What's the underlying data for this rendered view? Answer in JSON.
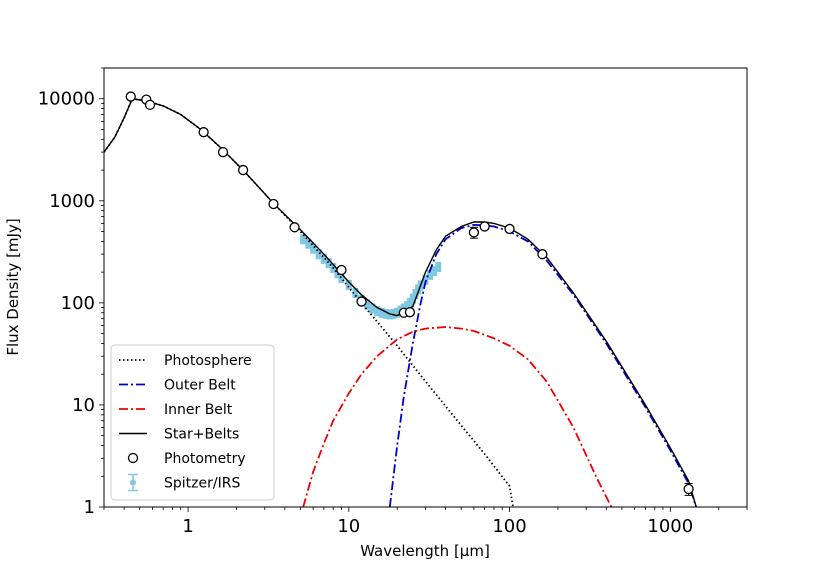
{
  "chart_data": {
    "type": "scatter",
    "title": "",
    "xlabel": "Wavelength [μm]",
    "ylabel": "Flux Density [mJy]",
    "xscale": "log",
    "yscale": "log",
    "xlim": [
      0.3,
      3000
    ],
    "ylim": [
      1,
      20000
    ],
    "x_ticks": [
      {
        "value": 1,
        "label": "1"
      },
      {
        "value": 10,
        "label": "10"
      },
      {
        "value": 100,
        "label": "100"
      },
      {
        "value": 1000,
        "label": "1000"
      }
    ],
    "y_ticks": [
      {
        "value": 1,
        "label": "1"
      },
      {
        "value": 10,
        "label": "10"
      },
      {
        "value": 100,
        "label": "100"
      },
      {
        "value": 1000,
        "label": "1000"
      },
      {
        "value": 10000,
        "label": "10000"
      }
    ],
    "legend": {
      "position": "lower-left",
      "entries": [
        {
          "key": "photosphere",
          "label": "Photosphere",
          "color": "#000000",
          "style": "dotted"
        },
        {
          "key": "outer",
          "label": "Outer Belt",
          "color": "#0000cc",
          "style": "dashdot"
        },
        {
          "key": "inner",
          "label": "Inner Belt",
          "color": "#ee0000",
          "style": "dashdot"
        },
        {
          "key": "total",
          "label": "Star+Belts",
          "color": "#000000",
          "style": "solid"
        },
        {
          "key": "phot",
          "label": "Photometry",
          "color": "#000000",
          "style": "marker"
        },
        {
          "key": "irs",
          "label": "Spitzer/IRS",
          "color": "#7ec8e3",
          "style": "errorbar"
        }
      ]
    },
    "series": [
      {
        "name": "Photosphere",
        "color": "#000000",
        "style": "dotted",
        "points": [
          [
            0.3,
            3000
          ],
          [
            0.35,
            4200
          ],
          [
            0.4,
            6500
          ],
          [
            0.45,
            10000
          ],
          [
            0.55,
            9500
          ],
          [
            0.7,
            8500
          ],
          [
            0.9,
            7000
          ],
          [
            1.2,
            5000
          ],
          [
            1.6,
            3300
          ],
          [
            2.2,
            2000
          ],
          [
            3.5,
            900
          ],
          [
            5,
            500
          ],
          [
            8,
            220
          ],
          [
            12,
            100
          ],
          [
            20,
            38
          ],
          [
            30,
            17
          ],
          [
            50,
            6.3
          ],
          [
            70,
            3.3
          ],
          [
            100,
            1.6
          ],
          [
            105,
            1.0
          ]
        ]
      },
      {
        "name": "Outer Belt",
        "color": "#0000cc",
        "style": "dashdot",
        "points": [
          [
            18,
            1
          ],
          [
            20,
            4
          ],
          [
            22,
            12
          ],
          [
            25,
            40
          ],
          [
            28,
            100
          ],
          [
            30,
            160
          ],
          [
            35,
            300
          ],
          [
            40,
            420
          ],
          [
            50,
            540
          ],
          [
            60,
            580
          ],
          [
            70,
            575
          ],
          [
            80,
            560
          ],
          [
            100,
            500
          ],
          [
            130,
            400
          ],
          [
            170,
            260
          ],
          [
            250,
            120
          ],
          [
            400,
            40
          ],
          [
            700,
            9.5
          ],
          [
            1000,
            3.6
          ],
          [
            1300,
            1.7
          ],
          [
            1450,
            1
          ]
        ]
      },
      {
        "name": "Inner Belt",
        "color": "#ee0000",
        "style": "dashdot",
        "points": [
          [
            5.2,
            1
          ],
          [
            6,
            2.2
          ],
          [
            7,
            4.2
          ],
          [
            8,
            7
          ],
          [
            10,
            13
          ],
          [
            12,
            20
          ],
          [
            15,
            30
          ],
          [
            20,
            44
          ],
          [
            25,
            52
          ],
          [
            30,
            56
          ],
          [
            40,
            58
          ],
          [
            50,
            56
          ],
          [
            60,
            53
          ],
          [
            80,
            45
          ],
          [
            100,
            38
          ],
          [
            130,
            28
          ],
          [
            170,
            17
          ],
          [
            200,
            11
          ],
          [
            250,
            6
          ],
          [
            300,
            3.2
          ],
          [
            350,
            1.9
          ],
          [
            430,
            1
          ]
        ]
      },
      {
        "name": "Star+Belts",
        "color": "#000000",
        "style": "solid",
        "points": [
          [
            0.3,
            3000
          ],
          [
            0.35,
            4200
          ],
          [
            0.4,
            6500
          ],
          [
            0.45,
            10000
          ],
          [
            0.55,
            9500
          ],
          [
            0.7,
            8500
          ],
          [
            0.9,
            7000
          ],
          [
            1.2,
            5000
          ],
          [
            1.6,
            3300
          ],
          [
            2.2,
            2000
          ],
          [
            3.5,
            900
          ],
          [
            5,
            520
          ],
          [
            7,
            300
          ],
          [
            10,
            160
          ],
          [
            12,
            120
          ],
          [
            15,
            90
          ],
          [
            18,
            78
          ],
          [
            20,
            75
          ],
          [
            25,
            92
          ],
          [
            30,
            200
          ],
          [
            35,
            330
          ],
          [
            40,
            450
          ],
          [
            50,
            560
          ],
          [
            60,
            620
          ],
          [
            70,
            620
          ],
          [
            80,
            600
          ],
          [
            100,
            540
          ],
          [
            130,
            420
          ],
          [
            170,
            280
          ],
          [
            250,
            125
          ],
          [
            400,
            42
          ],
          [
            700,
            10
          ],
          [
            1000,
            3.8
          ],
          [
            1300,
            1.8
          ],
          [
            1450,
            1
          ]
        ]
      }
    ],
    "photometry": [
      {
        "x": 0.44,
        "y": 10500
      },
      {
        "x": 0.55,
        "y": 9800
      },
      {
        "x": 0.58,
        "y": 8700
      },
      {
        "x": 1.25,
        "y": 4700
      },
      {
        "x": 1.65,
        "y": 3000
      },
      {
        "x": 2.2,
        "y": 2000
      },
      {
        "x": 3.4,
        "y": 930
      },
      {
        "x": 4.6,
        "y": 550
      },
      {
        "x": 9,
        "y": 210
      },
      {
        "x": 12,
        "y": 103
      },
      {
        "x": 22,
        "y": 80
      },
      {
        "x": 24,
        "y": 81
      },
      {
        "x": 60,
        "y": 490,
        "err": 60
      },
      {
        "x": 70,
        "y": 560
      },
      {
        "x": 100,
        "y": 530
      },
      {
        "x": 160,
        "y": 300
      },
      {
        "x": 1300,
        "y": 1.5,
        "err": 0.2
      }
    ],
    "irs": {
      "x": [
        5.2,
        5.6,
        6,
        6.5,
        7,
        7.5,
        8,
        8.5,
        9,
        10,
        11,
        12,
        13,
        14,
        15,
        16,
        17,
        18,
        19,
        20,
        21,
        22,
        23,
        24,
        25,
        26,
        27,
        28,
        30,
        32,
        34,
        36
      ],
      "y": [
        420,
        380,
        340,
        300,
        270,
        245,
        220,
        195,
        175,
        150,
        125,
        107,
        96,
        88,
        83,
        80,
        78,
        77,
        78,
        80,
        84,
        88,
        93,
        100,
        110,
        122,
        135,
        148,
        168,
        188,
        205,
        225
      ],
      "err": [
        0.12,
        0.12,
        0.12,
        0.12,
        0.12,
        0.12,
        0.12,
        0.12,
        0.12,
        0.12,
        0.12,
        0.12,
        0.12,
        0.12,
        0.12,
        0.12,
        0.12,
        0.12,
        0.12,
        0.12,
        0.12,
        0.12,
        0.12,
        0.12,
        0.12,
        0.12,
        0.12,
        0.12,
        0.12,
        0.12,
        0.12,
        0.12
      ]
    }
  }
}
